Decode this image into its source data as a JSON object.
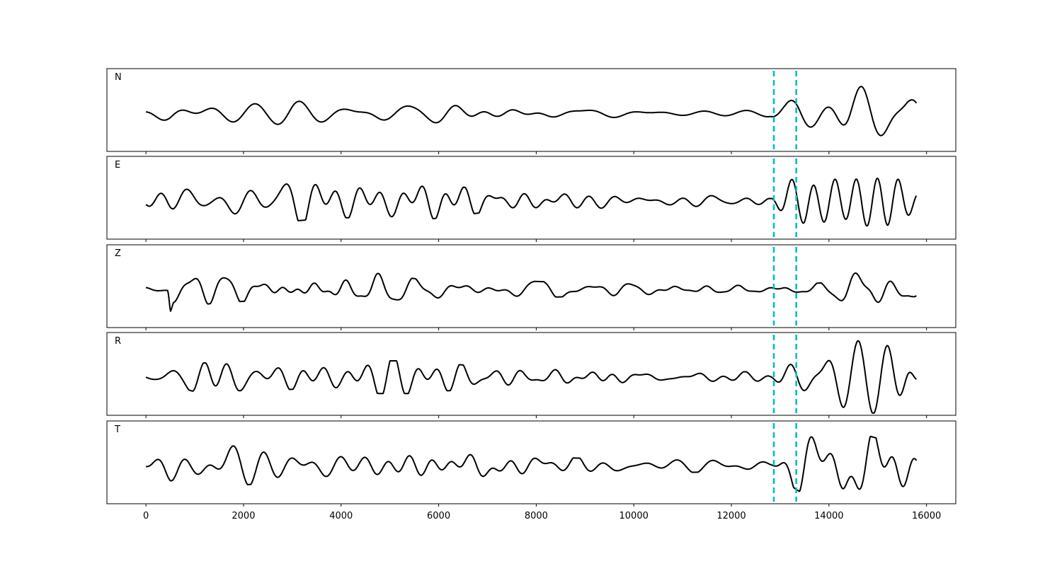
{
  "chart_data": {
    "type": "line",
    "title": "",
    "xlabel": "",
    "ylabel": "",
    "xlim": [
      -800,
      16600
    ],
    "x_ticks": [
      0,
      2000,
      4000,
      6000,
      8000,
      10000,
      12000,
      14000,
      16000
    ],
    "x_tick_labels": [
      "0",
      "2000",
      "4000",
      "6000",
      "8000",
      "10000",
      "12000",
      "14000",
      "16000"
    ],
    "n_samples": 15800,
    "vertical_markers": {
      "color": "#00bfbf",
      "style": "dashed",
      "x": [
        12870,
        13330
      ]
    },
    "panels": [
      {
        "label": "N",
        "envelope": [
          [
            0,
            0.1
          ],
          [
            500,
            0.28
          ],
          [
            1000,
            0.28
          ],
          [
            2500,
            0.28
          ],
          [
            3000,
            0.38
          ],
          [
            4000,
            0.28
          ],
          [
            4800,
            0.38
          ],
          [
            5500,
            0.3
          ],
          [
            7000,
            0.25
          ],
          [
            9000,
            0.18
          ],
          [
            11000,
            0.12
          ],
          [
            12800,
            0.12
          ],
          [
            13100,
            0.35
          ],
          [
            13400,
            0.65
          ],
          [
            14000,
            0.75
          ],
          [
            14400,
            1.0
          ],
          [
            15000,
            0.85
          ],
          [
            15600,
            0.9
          ],
          [
            15800,
            0.7
          ]
        ]
      },
      {
        "label": "E",
        "envelope": [
          [
            0,
            0.1
          ],
          [
            500,
            0.45
          ],
          [
            1000,
            0.55
          ],
          [
            2000,
            0.5
          ],
          [
            3000,
            0.55
          ],
          [
            4000,
            0.45
          ],
          [
            5500,
            0.55
          ],
          [
            7000,
            0.3
          ],
          [
            9000,
            0.25
          ],
          [
            11000,
            0.18
          ],
          [
            12800,
            0.15
          ],
          [
            13100,
            0.55
          ],
          [
            13500,
            0.8
          ],
          [
            14300,
            0.75
          ],
          [
            15200,
            1.0
          ],
          [
            15800,
            0.75
          ]
        ]
      },
      {
        "label": "Z",
        "envelope": [
          [
            0,
            0.05
          ],
          [
            450,
            0.05
          ],
          [
            500,
            1.0
          ],
          [
            560,
            0.55
          ],
          [
            800,
            0.5
          ],
          [
            1500,
            0.35
          ],
          [
            2500,
            0.3
          ],
          [
            4700,
            0.45
          ],
          [
            5500,
            0.3
          ],
          [
            8000,
            0.22
          ],
          [
            10000,
            0.15
          ],
          [
            12800,
            0.1
          ],
          [
            13300,
            0.12
          ],
          [
            14000,
            0.2
          ],
          [
            14500,
            0.45
          ],
          [
            14900,
            0.7
          ],
          [
            15300,
            0.5
          ],
          [
            15800,
            0.35
          ]
        ]
      },
      {
        "label": "R",
        "envelope": [
          [
            0,
            0.08
          ],
          [
            500,
            0.2
          ],
          [
            1000,
            0.4
          ],
          [
            2500,
            0.35
          ],
          [
            4000,
            0.3
          ],
          [
            4800,
            0.45
          ],
          [
            5500,
            0.45
          ],
          [
            7000,
            0.28
          ],
          [
            9000,
            0.2
          ],
          [
            11000,
            0.15
          ],
          [
            12800,
            0.15
          ],
          [
            13100,
            0.35
          ],
          [
            13500,
            0.55
          ],
          [
            14000,
            0.85
          ],
          [
            14600,
            1.0
          ],
          [
            15600,
            0.95
          ],
          [
            15800,
            0.6
          ]
        ]
      },
      {
        "label": "T",
        "envelope": [
          [
            0,
            0.1
          ],
          [
            500,
            0.45
          ],
          [
            1000,
            0.45
          ],
          [
            1700,
            0.55
          ],
          [
            3000,
            0.45
          ],
          [
            3400,
            0.45
          ],
          [
            5000,
            0.4
          ],
          [
            7000,
            0.3
          ],
          [
            9000,
            0.2
          ],
          [
            11300,
            0.18
          ],
          [
            12800,
            0.12
          ],
          [
            13100,
            0.45
          ],
          [
            13500,
            0.8
          ],
          [
            14000,
            0.8
          ],
          [
            14300,
            1.0
          ],
          [
            15000,
            0.75
          ],
          [
            15800,
            0.65
          ]
        ]
      }
    ]
  }
}
